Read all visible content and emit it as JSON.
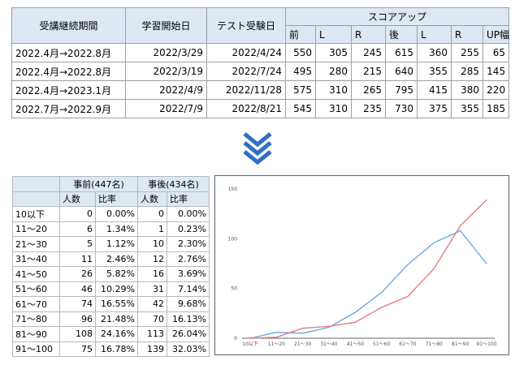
{
  "top_table": {
    "headers": {
      "period": "受講継続期間",
      "start": "学習開始日",
      "test": "テスト受験日",
      "score_up": "スコアアップ",
      "sub": [
        "前",
        "L",
        "R",
        "後",
        "L",
        "R",
        "UP幅"
      ]
    },
    "rows": [
      [
        "2022.4月→2022.8月",
        "2022/3/29",
        "2022/4/24",
        "550",
        "305",
        "245",
        "615",
        "360",
        "255",
        "65"
      ],
      [
        "2022.4月→2022.8月",
        "2022/3/19",
        "2022/7/24",
        "495",
        "280",
        "215",
        "640",
        "355",
        "285",
        "145"
      ],
      [
        "2022.4月→2023.1月",
        "2022/4/9",
        "2022/11/28",
        "575",
        "310",
        "265",
        "795",
        "415",
        "380",
        "220"
      ],
      [
        "2022.7月→2022.9月",
        "2022/7/9",
        "2022/8/21",
        "545",
        "310",
        "235",
        "730",
        "375",
        "355",
        "185"
      ]
    ]
  },
  "arrow": {
    "icon": "double-chevron-down-icon",
    "color": "#2f6fc4"
  },
  "dist_table": {
    "group_before": "事前(447名)",
    "group_after": "事後(434名)",
    "sub_headers": [
      "人数",
      "比率",
      "人数",
      "比率"
    ],
    "rows": [
      [
        "10以下",
        "0",
        "0.00%",
        "0",
        "0.00%"
      ],
      [
        "11～20",
        "6",
        "1.34%",
        "1",
        "0.23%"
      ],
      [
        "21～30",
        "5",
        "1.12%",
        "10",
        "2.30%"
      ],
      [
        "31～40",
        "11",
        "2.46%",
        "12",
        "2.76%"
      ],
      [
        "41～50",
        "26",
        "5.82%",
        "16",
        "3.69%"
      ],
      [
        "51～60",
        "46",
        "10.29%",
        "31",
        "7.14%"
      ],
      [
        "61～70",
        "74",
        "16.55%",
        "42",
        "9.68%"
      ],
      [
        "71～80",
        "96",
        "21.48%",
        "70",
        "16.13%"
      ],
      [
        "81～90",
        "108",
        "24.16%",
        "113",
        "26.04%"
      ],
      [
        "91～100",
        "75",
        "16.78%",
        "139",
        "32.03%"
      ]
    ]
  },
  "chart_data": {
    "type": "line",
    "categories": [
      "10以下",
      "11～20",
      "21～30",
      "31～40",
      "41～50",
      "51～60",
      "61～70",
      "71～80",
      "81～90",
      "91～100"
    ],
    "series": [
      {
        "values": [
          0,
          6,
          5,
          11,
          26,
          46,
          74,
          96,
          108,
          75
        ],
        "color": "#6fa8e6"
      },
      {
        "values": [
          0,
          1,
          10,
          12,
          16,
          31,
          42,
          70,
          113,
          139
        ],
        "color": "#e8797e"
      }
    ],
    "yticks": [
      "0",
      "50",
      "100",
      "150"
    ],
    "ylim": [
      0,
      150
    ],
    "grid": false,
    "legend": "none"
  }
}
